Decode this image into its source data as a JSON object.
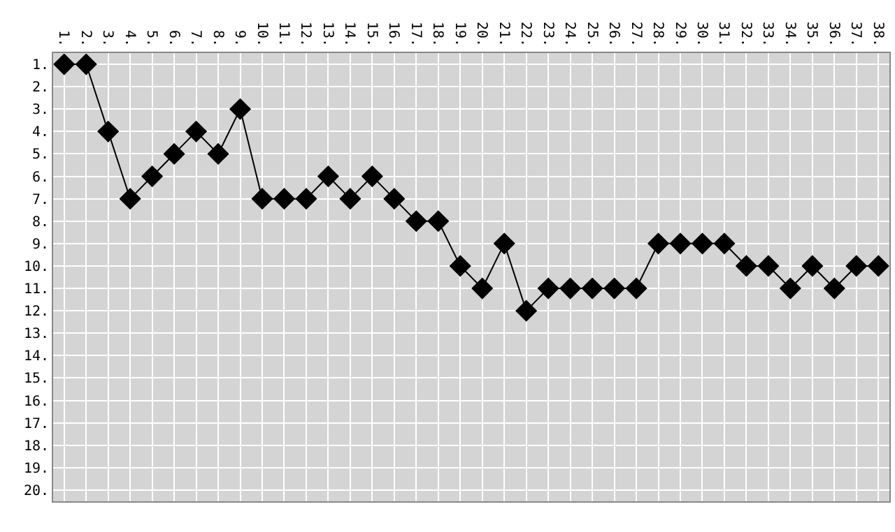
{
  "chart_data": {
    "type": "line",
    "x": [
      1,
      2,
      3,
      4,
      5,
      6,
      7,
      8,
      9,
      10,
      11,
      12,
      13,
      14,
      15,
      16,
      17,
      18,
      19,
      20,
      21,
      22,
      23,
      24,
      25,
      26,
      27,
      28,
      29,
      30,
      31,
      32,
      33,
      34,
      35,
      36,
      37,
      38
    ],
    "series": [
      {
        "color": "#000000",
        "values": [
          1,
          1,
          4,
          7,
          6,
          5,
          4,
          5,
          3,
          7,
          7,
          7,
          6,
          7,
          6,
          7,
          8,
          8,
          10,
          11,
          9,
          12,
          11,
          11,
          11,
          11,
          11,
          9,
          9,
          9,
          9,
          10,
          10,
          11,
          10,
          11,
          10,
          10
        ]
      }
    ],
    "xlim": [
      0.5,
      38.5
    ],
    "ylim": [
      20.5,
      0.5
    ],
    "xticks": [
      {
        "value": 1,
        "label": "1."
      },
      {
        "value": 2,
        "label": "2."
      },
      {
        "value": 3,
        "label": "3."
      },
      {
        "value": 4,
        "label": "4."
      },
      {
        "value": 5,
        "label": "5."
      },
      {
        "value": 6,
        "label": "6."
      },
      {
        "value": 7,
        "label": "7."
      },
      {
        "value": 8,
        "label": "8."
      },
      {
        "value": 9,
        "label": "9."
      },
      {
        "value": 10,
        "label": "10."
      },
      {
        "value": 11,
        "label": "11."
      },
      {
        "value": 12,
        "label": "12."
      },
      {
        "value": 13,
        "label": "13."
      },
      {
        "value": 14,
        "label": "14."
      },
      {
        "value": 15,
        "label": "15."
      },
      {
        "value": 16,
        "label": "16."
      },
      {
        "value": 17,
        "label": "17."
      },
      {
        "value": 18,
        "label": "18."
      },
      {
        "value": 19,
        "label": "19."
      },
      {
        "value": 20,
        "label": "20."
      },
      {
        "value": 21,
        "label": "21."
      },
      {
        "value": 22,
        "label": "22."
      },
      {
        "value": 23,
        "label": "23."
      },
      {
        "value": 24,
        "label": "24."
      },
      {
        "value": 25,
        "label": "25."
      },
      {
        "value": 26,
        "label": "26."
      },
      {
        "value": 27,
        "label": "27."
      },
      {
        "value": 28,
        "label": "28."
      },
      {
        "value": 29,
        "label": "29."
      },
      {
        "value": 30,
        "label": "30."
      },
      {
        "value": 31,
        "label": "31."
      },
      {
        "value": 32,
        "label": "32."
      },
      {
        "value": 33,
        "label": "33."
      },
      {
        "value": 34,
        "label": "34."
      },
      {
        "value": 35,
        "label": "35."
      },
      {
        "value": 36,
        "label": "36."
      },
      {
        "value": 37,
        "label": "37."
      },
      {
        "value": 38,
        "label": "38."
      }
    ],
    "yticks": [
      {
        "value": 1,
        "label": "1."
      },
      {
        "value": 2,
        "label": "2."
      },
      {
        "value": 3,
        "label": "3."
      },
      {
        "value": 4,
        "label": "4."
      },
      {
        "value": 5,
        "label": "5."
      },
      {
        "value": 6,
        "label": "6."
      },
      {
        "value": 7,
        "label": "7."
      },
      {
        "value": 8,
        "label": "8."
      },
      {
        "value": 9,
        "label": "9."
      },
      {
        "value": 10,
        "label": "10."
      },
      {
        "value": 11,
        "label": "11."
      },
      {
        "value": 12,
        "label": "12."
      },
      {
        "value": 13,
        "label": "13."
      },
      {
        "value": 14,
        "label": "14."
      },
      {
        "value": 15,
        "label": "15."
      },
      {
        "value": 16,
        "label": "16."
      },
      {
        "value": 17,
        "label": "17."
      },
      {
        "value": 18,
        "label": "18."
      },
      {
        "value": 19,
        "label": "19."
      },
      {
        "value": 20,
        "label": "20."
      }
    ],
    "grid": true,
    "marker": "diamond",
    "line_style": "solid"
  }
}
